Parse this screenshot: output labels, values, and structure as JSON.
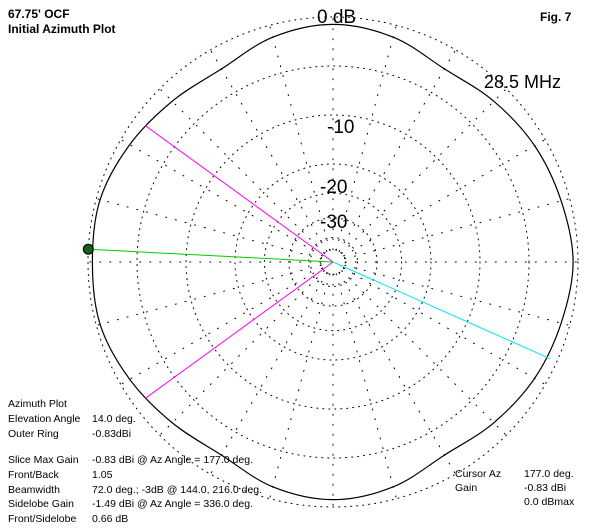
{
  "header": {
    "title_line1": "67.75' OCF",
    "title_line2": "Initial Azimuth Plot",
    "fig_label": "Fig. 7"
  },
  "chart_data": {
    "type": "polar",
    "title": "Initial Azimuth Plot",
    "frequency_label": "28.5 MHz",
    "ring_labels": [
      "0 dB",
      "-10",
      "-20",
      "-30"
    ],
    "ring_levels_db": [
      0,
      -10,
      -20,
      -30
    ],
    "pattern": {
      "name": "Azimuth pattern",
      "units": "dB relative to outer ring",
      "az_deg": [
        0,
        15,
        30,
        45,
        60,
        75,
        90,
        105,
        120,
        135,
        150,
        165,
        180,
        195,
        210,
        225,
        240,
        255,
        270,
        285,
        300,
        315,
        330,
        345
      ],
      "gain_db": [
        -1.0,
        -1.8,
        -2.5,
        -3.6,
        -4.5,
        -2.5,
        -1.5,
        -2.5,
        -4.5,
        -3.6,
        -2.1,
        -0.8,
        -0.9,
        -0.8,
        -2.1,
        -3.6,
        -4.5,
        -2.5,
        -1.5,
        -2.5,
        -4.5,
        -3.6,
        -2.5,
        -1.8
      ]
    },
    "markers": {
      "max_gain_az_deg": 177.0,
      "beamwidth_edges_az_deg": [
        144.0,
        216.0
      ],
      "sidelobe_az_deg": 336.0,
      "cursor_az_deg": 177.0
    },
    "colors": {
      "pattern": "#000000",
      "max_gain_line": "#00cc00",
      "beamwidth_lines": "#ff00ff",
      "sidelobe_line": "#00e5ee",
      "max_gain_dot": "#1a5c1a",
      "grid": "#000000"
    }
  },
  "info_left": {
    "plot_type": "Azimuth Plot",
    "elevation_label": "Elevation Angle",
    "elevation_value": "14.0 deg.",
    "outer_ring_label": "Outer Ring",
    "outer_ring_value": "-0.83dBi",
    "rows": [
      {
        "label": "Slice Max Gain",
        "value": "-0.83 dBi @ Az Angle = 177.0 deg."
      },
      {
        "label": "Front/Back",
        "value": "1.05"
      },
      {
        "label": "Beamwidth",
        "value": "72.0 deg.; -3dB @ 144.0, 216.0 deg."
      },
      {
        "label": "Sidelobe Gain",
        "value": "-1.49 dBi @ Az Angle = 336.0 deg."
      },
      {
        "label": "Front/Sidelobe",
        "value": "0.66 dB"
      }
    ]
  },
  "info_right": {
    "cursor_az_label": "Cursor Az",
    "cursor_az_value": "177.0 deg.",
    "gain_label": "Gain",
    "gain_value": "-0.83 dBi",
    "dbmax_value": "0.0 dBmax"
  }
}
